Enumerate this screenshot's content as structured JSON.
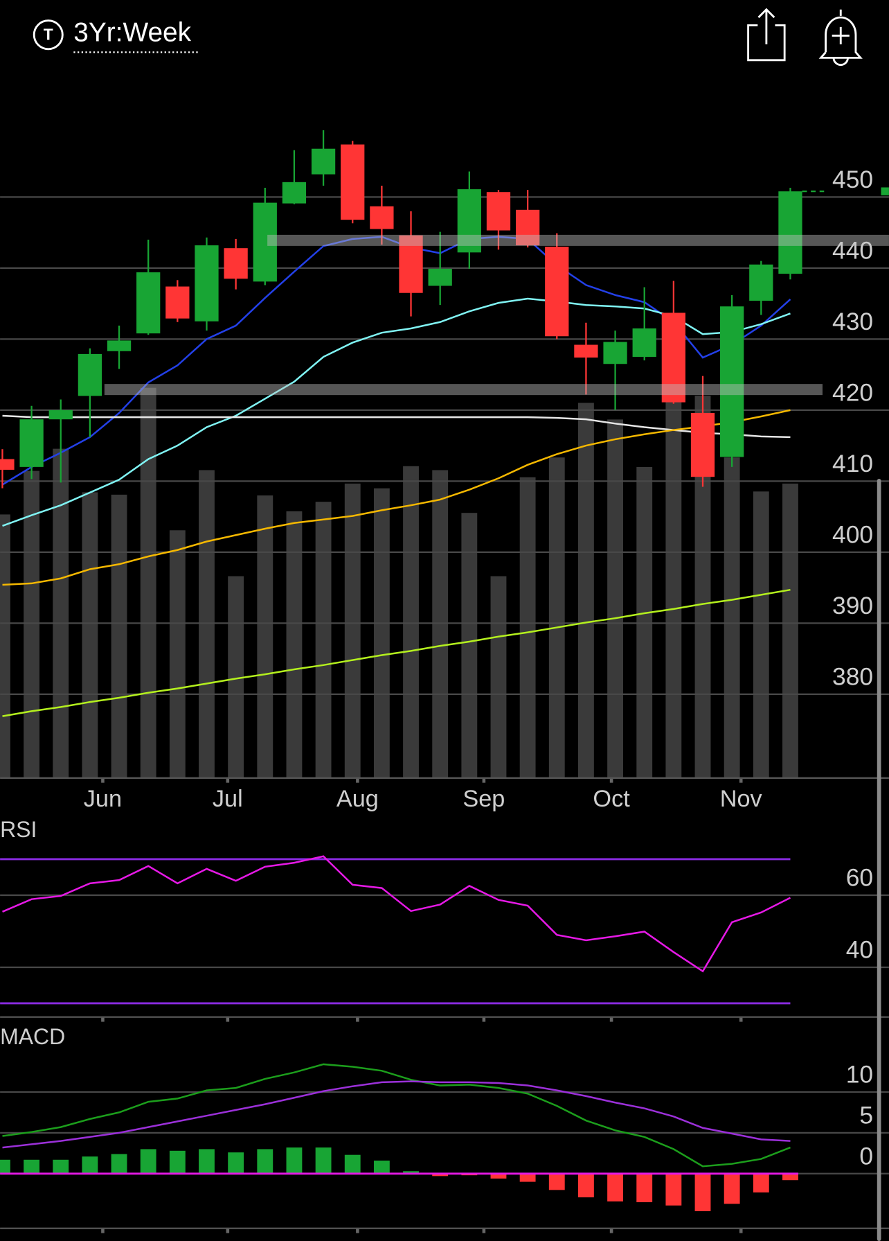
{
  "header": {
    "badge": "T",
    "range": "3Yr:Week"
  },
  "chart_data": [
    {
      "type": "candlestick",
      "x": [
        0,
        1,
        2,
        3,
        4,
        5,
        6,
        7,
        8,
        9,
        10,
        11,
        12,
        13,
        14,
        15,
        16,
        17,
        18,
        19,
        20,
        21,
        22,
        23,
        24,
        25,
        26,
        27
      ],
      "open": [
        413.1,
        412.0,
        418.7,
        422.0,
        428.3,
        430.8,
        437.4,
        432.5,
        442.8,
        438.1,
        449.1,
        453.2,
        457.4,
        448.7,
        444.6,
        437.5,
        442.2,
        450.7,
        448.2,
        443.0,
        429.2,
        426.5,
        427.5,
        433.7,
        419.6,
        413.4,
        435.4,
        439.2
      ],
      "high": [
        414.5,
        420.6,
        421.5,
        428.7,
        431.9,
        444.0,
        438.3,
        444.3,
        444.1,
        451.3,
        456.6,
        459.4,
        457.9,
        451.6,
        448.0,
        445.1,
        453.6,
        451.0,
        451.0,
        444.9,
        432.3,
        431.2,
        437.3,
        438.2,
        424.8,
        436.2,
        441.0,
        451.3
      ],
      "low": [
        409.0,
        410.3,
        409.8,
        416.2,
        425.8,
        430.6,
        432.4,
        431.2,
        437.0,
        437.6,
        449.0,
        451.6,
        446.3,
        443.3,
        433.2,
        434.8,
        439.9,
        442.6,
        442.9,
        430.0,
        422.2,
        420.0,
        427.0,
        420.9,
        409.2,
        412.0,
        433.4,
        438.4
      ],
      "close": [
        411.6,
        418.7,
        420.0,
        427.9,
        429.8,
        439.4,
        432.9,
        443.2,
        438.5,
        449.2,
        452.1,
        456.8,
        446.8,
        445.5,
        436.5,
        439.9,
        451.1,
        445.3,
        443.2,
        430.4,
        427.4,
        429.6,
        431.5,
        421.1,
        410.6,
        434.6,
        440.5,
        450.8
      ],
      "up_color": "#18a534",
      "down_color": "#ff3535",
      "volume": {
        "values": [
          333,
          388,
          416,
          361,
          358,
          493,
          313,
          389,
          255,
          357,
          337,
          349,
          372,
          366,
          394,
          389,
          335,
          255,
          380,
          405,
          474,
          453,
          393,
          478,
          483,
          405,
          362,
          372
        ],
        "color": "#3a3a3a",
        "lim": [
          0,
          883
        ]
      },
      "overlays": [
        {
          "color": "#2340e8",
          "values": [
            409.5,
            412.0,
            414.0,
            416.2,
            419.6,
            423.9,
            426.3,
            430.0,
            431.9,
            435.8,
            439.5,
            443.1,
            444.1,
            444.4,
            442.9,
            442.1,
            444.1,
            444.4,
            444.1,
            440.4,
            437.6,
            436.2,
            435.2,
            432.4,
            427.4,
            429.2,
            431.9,
            435.6
          ]
        },
        {
          "color": "#80f4f4",
          "values": [
            403.7,
            405.2,
            406.6,
            408.4,
            410.2,
            413.1,
            415.0,
            417.6,
            419.2,
            421.6,
            424.0,
            427.5,
            429.5,
            430.9,
            431.5,
            432.4,
            433.9,
            435.1,
            435.7,
            435.3,
            434.8,
            434.6,
            434.3,
            433.2,
            430.7,
            431.0,
            432.1,
            433.6
          ]
        },
        {
          "color": "#e6e6e6",
          "values": [
            419.2,
            419.0,
            419.0,
            419.0,
            419.0,
            419.0,
            419.0,
            419.0,
            419.0,
            419.0,
            419.0,
            419.0,
            419.0,
            419.0,
            419.0,
            419.0,
            419.0,
            419.0,
            419.0,
            418.9,
            418.7,
            418.1,
            417.6,
            417.2,
            416.8,
            416.6,
            416.3,
            416.2
          ]
        },
        {
          "color": "#f5b800",
          "values": [
            395.4,
            395.6,
            396.3,
            397.6,
            398.3,
            399.4,
            400.3,
            401.5,
            402.4,
            403.3,
            404.1,
            404.6,
            405.1,
            405.9,
            406.6,
            407.4,
            408.8,
            410.4,
            412.3,
            413.8,
            415.0,
            415.9,
            416.6,
            417.2,
            417.7,
            418.3,
            419.1,
            420.0
          ]
        },
        {
          "color": "#b4f01e",
          "values": [
            376.9,
            377.6,
            378.2,
            378.9,
            379.5,
            380.2,
            380.8,
            381.5,
            382.2,
            382.8,
            383.5,
            384.1,
            384.8,
            385.5,
            386.1,
            386.8,
            387.4,
            388.1,
            388.7,
            389.4,
            390.1,
            390.7,
            391.4,
            392.0,
            392.7,
            393.3,
            394.0,
            394.7
          ]
        }
      ],
      "levels": [
        443.9,
        422.9
      ],
      "xlim": [
        -0.08,
        30.38
      ],
      "xticks": [
        {
          "value": 3.44,
          "label": "Jun"
        },
        {
          "value": 7.72,
          "label": "Jul"
        },
        {
          "value": 12.17,
          "label": "Aug"
        },
        {
          "value": 16.5,
          "label": "Sep"
        },
        {
          "value": 20.87,
          "label": "Oct"
        },
        {
          "value": 25.31,
          "label": "Nov"
        }
      ],
      "ylim": [
        368.2,
        466.6
      ],
      "yticks": [
        450,
        440,
        430,
        420,
        410,
        400,
        390,
        380
      ],
      "grid": true
    },
    {
      "type": "line",
      "title": "RSI",
      "series": [
        {
          "color": "#e619e6",
          "values": [
            55.4,
            58.9,
            59.8,
            63.3,
            64.2,
            68.1,
            63.3,
            67.3,
            64.0,
            67.9,
            69.0,
            70.8,
            62.9,
            62.0,
            55.6,
            57.4,
            62.6,
            58.7,
            57.1,
            49.0,
            47.5,
            48.6,
            49.9,
            44.2,
            38.9,
            52.5,
            55.2,
            59.3
          ]
        }
      ],
      "bands": [
        70,
        30
      ],
      "band_color": "#8a2be2",
      "ylim": [
        26.2,
        82.2
      ],
      "yticks": [
        60,
        40
      ],
      "grid": true
    },
    {
      "type": "macd",
      "title": "MACD",
      "series": [
        {
          "color": "#1c9e1c",
          "values": [
            4.6,
            5.1,
            5.7,
            6.7,
            7.5,
            8.8,
            9.2,
            10.2,
            10.5,
            11.6,
            12.4,
            13.4,
            13.1,
            12.6,
            11.5,
            10.8,
            10.9,
            10.5,
            9.8,
            8.3,
            6.5,
            5.3,
            4.5,
            3.0,
            0.9,
            1.2,
            1.8,
            3.2
          ]
        },
        {
          "color": "#9b30d9",
          "values": [
            3.2,
            3.6,
            4.0,
            4.5,
            5.0,
            5.7,
            6.4,
            7.1,
            7.8,
            8.5,
            9.3,
            10.1,
            10.7,
            11.2,
            11.3,
            11.2,
            11.2,
            11.1,
            10.8,
            10.2,
            9.5,
            8.7,
            8.0,
            7.0,
            5.6,
            4.9,
            4.2,
            4.0
          ]
        }
      ],
      "histogram": {
        "values": [
          1.7,
          1.7,
          1.7,
          2.1,
          2.4,
          3.0,
          2.8,
          3.0,
          2.6,
          3.0,
          3.2,
          3.2,
          2.3,
          1.6,
          0.3,
          -0.3,
          -0.2,
          -0.6,
          -1.0,
          -2.0,
          -2.9,
          -3.4,
          -3.5,
          -3.9,
          -4.6,
          -3.7,
          -2.3,
          -0.8
        ],
        "up_color": "#18a534",
        "down_color": "#ff3535",
        "baseline_color": "#e619e6"
      },
      "ylim": [
        -6.7,
        18.7
      ],
      "yticks": [
        10,
        5,
        0
      ],
      "grid": true
    }
  ]
}
